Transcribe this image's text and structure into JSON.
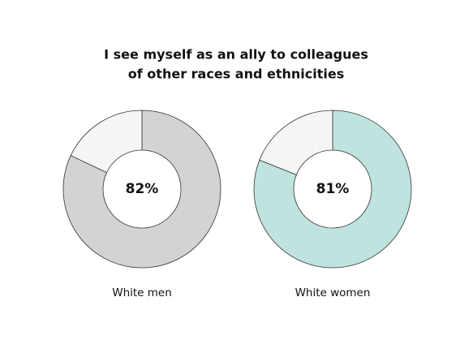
{
  "title": [
    "I see myself as an ally to colleagues",
    "of other races and ethnicities"
  ],
  "chart_data": [
    {
      "type": "donut",
      "label": "White men",
      "values": [
        82,
        18
      ],
      "center_label": "82%",
      "colors": [
        "#d3d3d3",
        "#f5f5f5"
      ]
    },
    {
      "type": "donut",
      "label": "White women",
      "values": [
        81,
        19
      ],
      "center_label": "81%",
      "colors": [
        "#bfe3de",
        "#f5f5f5"
      ]
    }
  ]
}
